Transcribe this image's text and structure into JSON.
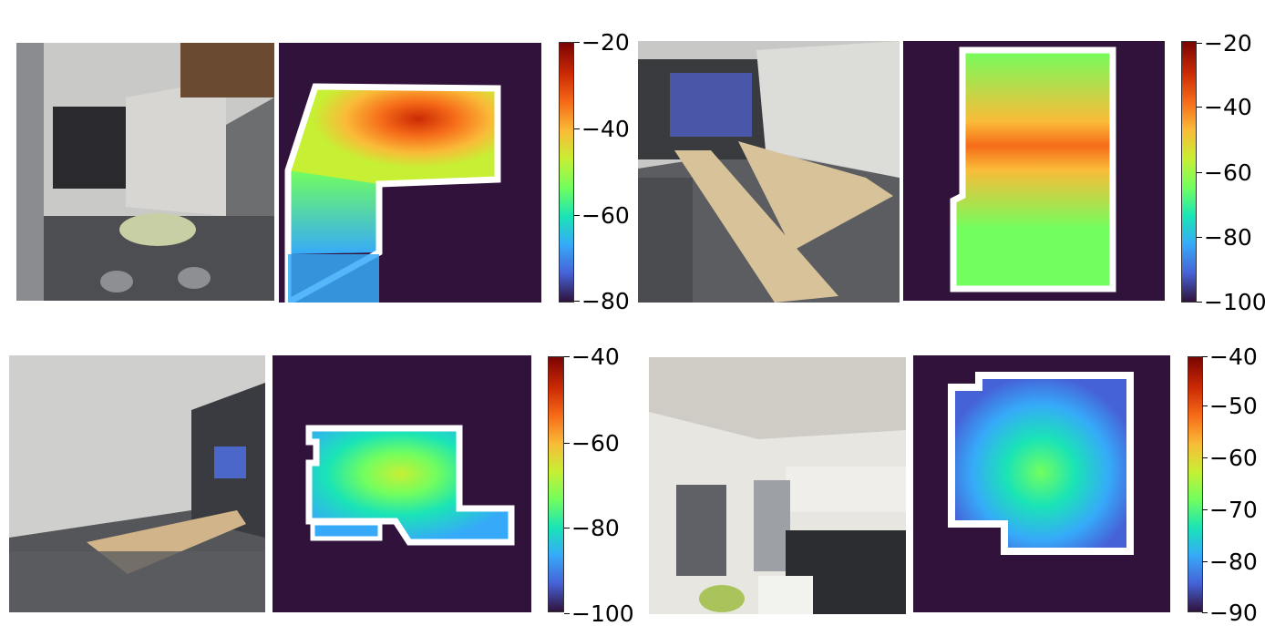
{
  "panels": [
    {
      "photo": "lounge-corridor-photo",
      "colorbar": {
        "ticks": [
          "−20",
          "−40",
          "−60",
          "−80"
        ],
        "range": [
          -80,
          -20
        ]
      }
    },
    {
      "photo": "conference-room-photo",
      "colorbar": {
        "ticks": [
          "−20",
          "−40",
          "−60",
          "−80",
          "−100"
        ],
        "range": [
          -100,
          -20
        ]
      }
    },
    {
      "photo": "meeting-room-photo",
      "colorbar": {
        "ticks": [
          "−40",
          "−60",
          "−80",
          "−100"
        ],
        "range": [
          -100,
          -40
        ]
      }
    },
    {
      "photo": "kitchen-photo",
      "colorbar": {
        "ticks": [
          "−40",
          "−50",
          "−60",
          "−70",
          "−80",
          "−90"
        ],
        "range": [
          -90,
          -40
        ]
      }
    }
  ],
  "colormap": [
    "#30123b",
    "#4662d7",
    "#36aaf9",
    "#1ae4b6",
    "#72fe5e",
    "#c7ef34",
    "#fabb38",
    "#f66b19",
    "#cb2a04",
    "#7a0403"
  ]
}
